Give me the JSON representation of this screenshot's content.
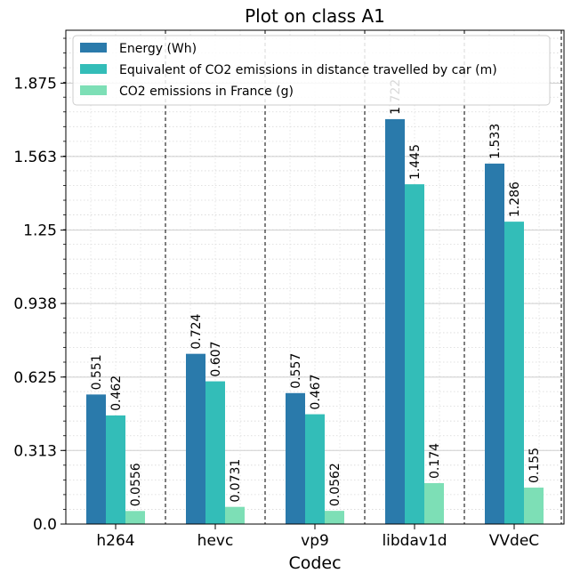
{
  "chart_data": {
    "type": "bar",
    "title": "Plot on class A1",
    "xlabel": "Codec",
    "ylabel": "",
    "categories": [
      "h264",
      "hevc",
      "vp9",
      "libdav1d",
      "VVdeC"
    ],
    "ylim": [
      0,
      2.1
    ],
    "yticks": [
      0.0,
      0.313,
      0.625,
      0.938,
      1.25,
      1.563,
      1.875
    ],
    "ytick_labels": [
      "0.0",
      "0.313",
      "0.625",
      "0.938",
      "1.25",
      "1.563",
      "1.875"
    ],
    "series": [
      {
        "name": "Energy (Wh)",
        "color": "#2a7aab",
        "values": [
          0.551,
          0.724,
          0.557,
          1.722,
          1.533
        ],
        "labels": [
          "0.551",
          "0.724",
          "0.557",
          "1.722",
          "1.533"
        ]
      },
      {
        "name": "Equivalent of CO2 emissions in distance travelled by car (m)",
        "color": "#33bdb8",
        "values": [
          0.462,
          0.607,
          0.467,
          1.445,
          1.286
        ],
        "labels": [
          "0.462",
          "0.607",
          "0.467",
          "1.445",
          "1.286"
        ]
      },
      {
        "name": "CO2 emissions in France (g)",
        "color": "#7ddfb6",
        "values": [
          0.0556,
          0.0731,
          0.0562,
          0.174,
          0.155
        ],
        "labels": [
          "0.0556",
          "0.0731",
          "0.0562",
          "0.174",
          "0.155"
        ]
      }
    ],
    "grid": true,
    "legend": "top-left"
  }
}
